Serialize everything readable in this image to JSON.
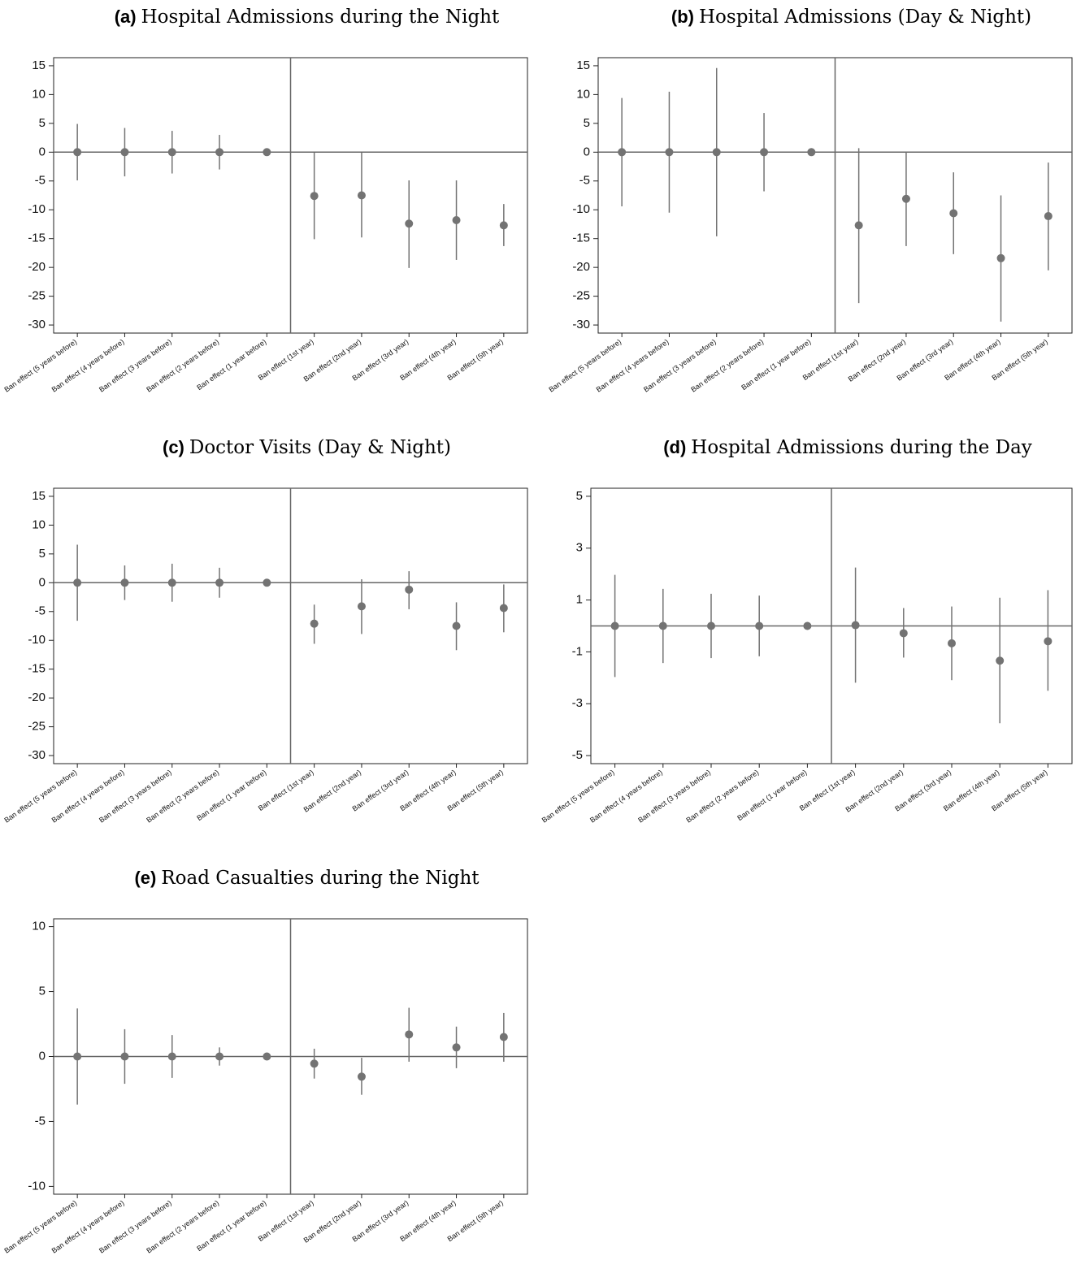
{
  "chart_data": [
    {
      "type": "errorbar",
      "label": "(a)",
      "title": "Hospital Admissions during the Night",
      "categories": [
        "Ban effect (5 years before)",
        "Ban effect (4 years before)",
        "Ban effect (3 years before)",
        "Ban effect (2 years before)",
        "Ban effect (1 year before)",
        "Ban effect (1st year)",
        "Ban effect (2nd year)",
        "Ban effect (3rd year)",
        "Ban effect (4th year)",
        "Ban effect (5th year)"
      ],
      "values": [
        0,
        0,
        0,
        0,
        0,
        -7.6,
        -7.5,
        -12.4,
        -11.8,
        -12.7
      ],
      "lower": [
        -4.9,
        -4.2,
        -3.7,
        -3.0,
        0,
        -15.1,
        -14.8,
        -20.1,
        -18.7,
        -16.3
      ],
      "upper": [
        4.9,
        4.2,
        3.7,
        3.0,
        0,
        -0.1,
        -0.1,
        -4.9,
        -4.9,
        -9.0
      ],
      "ylim": [
        -31.4,
        16.4
      ],
      "yticks": [
        15,
        10,
        5,
        0,
        -5,
        -10,
        -15,
        -20,
        -25,
        -30
      ],
      "hline": 0,
      "color": "#737373"
    },
    {
      "type": "errorbar",
      "label": "(b)",
      "title": "Hospital Admissions (Day & Night)",
      "categories": [
        "Ban effect (5 years before)",
        "Ban effect (4 years before)",
        "Ban effect (3 years before)",
        "Ban effect (2 years before)",
        "Ban effect (1 year before)",
        "Ban effect (1st year)",
        "Ban effect (2nd year)",
        "Ban effect (3rd year)",
        "Ban effect (4th year)",
        "Ban effect (5th year)"
      ],
      "values": [
        0,
        0,
        0,
        0,
        0,
        -12.7,
        -8.1,
        -10.6,
        -18.4,
        -11.1
      ],
      "lower": [
        -9.4,
        -10.5,
        -14.6,
        -6.8,
        0,
        -26.2,
        -16.3,
        -17.7,
        -29.4,
        -20.5
      ],
      "upper": [
        9.4,
        10.5,
        14.6,
        6.8,
        0,
        0.7,
        0,
        -3.5,
        -7.5,
        -1.8
      ],
      "ylim": [
        -31.4,
        16.4
      ],
      "yticks": [
        15,
        10,
        5,
        0,
        -5,
        -10,
        -15,
        -20,
        -25,
        -30
      ],
      "hline": 0,
      "color": "#737373"
    },
    {
      "type": "errorbar",
      "label": "(c)",
      "title": "Doctor Visits (Day & Night)",
      "categories": [
        "Ban effect (5 years before)",
        "Ban effect (4 years before)",
        "Ban effect (3 years before)",
        "Ban effect (2 years before)",
        "Ban effect (1 year before)",
        "Ban effect (1st year)",
        "Ban effect (2nd year)",
        "Ban effect (3rd year)",
        "Ban effect (4th year)",
        "Ban effect (5th year)"
      ],
      "values": [
        0,
        0,
        0,
        0,
        0,
        -7.1,
        -4.1,
        -1.2,
        -7.5,
        -4.4
      ],
      "lower": [
        -6.6,
        -3.0,
        -3.3,
        -2.6,
        0,
        -10.6,
        -8.9,
        -4.6,
        -11.7,
        -8.6
      ],
      "upper": [
        6.6,
        3.0,
        3.3,
        2.6,
        0,
        -3.8,
        0.6,
        2.0,
        -3.4,
        -0.3
      ],
      "ylim": [
        -31.4,
        16.4
      ],
      "yticks": [
        15,
        10,
        5,
        0,
        -5,
        -10,
        -15,
        -20,
        -25,
        -30
      ],
      "hline": 0,
      "color": "#737373"
    },
    {
      "type": "errorbar",
      "label": "(d)",
      "title": "Hospital Admissions during the Day",
      "categories": [
        "Ban effect (5 years before)",
        "Ban effect (4 years before)",
        "Ban effect (3 years before)",
        "Ban effect (2 years before)",
        "Ban effect (1 year before)",
        "Ban effect (1st year)",
        "Ban effect (2nd year)",
        "Ban effect (3rd year)",
        "Ban effect (4th year)",
        "Ban effect (5th year)"
      ],
      "values": [
        0,
        0,
        0,
        0,
        0,
        0.03,
        -0.28,
        -0.67,
        -1.34,
        -0.59
      ],
      "lower": [
        -1.97,
        -1.43,
        -1.24,
        -1.17,
        0,
        -2.19,
        -1.22,
        -2.09,
        -3.75,
        -2.5
      ],
      "upper": [
        1.97,
        1.43,
        1.24,
        1.17,
        0,
        2.25,
        0.69,
        0.75,
        1.09,
        1.38
      ],
      "ylim": [
        -5.31,
        5.31
      ],
      "yticks": [
        5,
        3,
        1,
        -1,
        -3,
        -5
      ],
      "hline": 0,
      "color": "#737373"
    },
    {
      "type": "errorbar",
      "label": "(e)",
      "title": "Road Casualties during the Night",
      "categories": [
        "Ban effect (5 years before)",
        "Ban effect (4 years before)",
        "Ban effect (3 years before)",
        "Ban effect (2 years before)",
        "Ban effect (1 year before)",
        "Ban effect (1st year)",
        "Ban effect (2nd year)",
        "Ban effect (3rd year)",
        "Ban effect (4th year)",
        "Ban effect (5th year)"
      ],
      "values": [
        0,
        0,
        0,
        0,
        0,
        -0.55,
        -1.55,
        1.7,
        0.7,
        1.5
      ],
      "lower": [
        -3.7,
        -2.1,
        -1.65,
        -0.7,
        0,
        -1.7,
        -2.95,
        -0.4,
        -0.9,
        -0.4
      ],
      "upper": [
        3.7,
        2.1,
        1.65,
        0.7,
        0,
        0.6,
        -0.1,
        3.75,
        2.3,
        3.35
      ],
      "ylim": [
        -10.6,
        10.6
      ],
      "yticks": [
        10,
        5,
        0,
        -5,
        -10
      ],
      "hline": 0,
      "color": "#737373"
    }
  ]
}
